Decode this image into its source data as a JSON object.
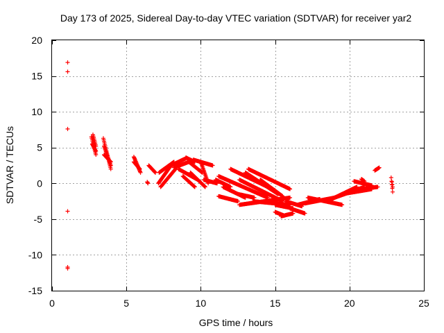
{
  "chart_data": {
    "type": "scatter",
    "title": "Day 173 of 2025, Sidereal Day-to-day VTEC variation (SDTVAR) for receiver yar2",
    "xlabel": "GPS time / hours",
    "ylabel": "SDTVAR / TECUs",
    "xlim": [
      0,
      25
    ],
    "ylim": [
      -15,
      20
    ],
    "xticks": [
      0,
      5,
      10,
      15,
      20,
      25
    ],
    "yticks": [
      -15,
      -10,
      -5,
      0,
      5,
      10,
      15,
      20
    ],
    "grid": true,
    "marker": "+",
    "color": "#ff0000",
    "series": [
      {
        "name": "SDTVAR",
        "description": "plus-marker scatter; traces listed as [start_hour, end_hour, start_value, end_value]",
        "isolated_points": [
          [
            1.05,
            16.9
          ],
          [
            1.05,
            15.6
          ],
          [
            1.05,
            7.6
          ],
          [
            1.05,
            -3.9
          ],
          [
            1.05,
            -11.7
          ],
          [
            1.05,
            -11.9
          ]
        ],
        "traces": [
          [
            2.65,
            2.95,
            6.5,
            4.0
          ],
          [
            2.7,
            2.95,
            5.5,
            4.5
          ],
          [
            2.75,
            2.95,
            6.8,
            5.2
          ],
          [
            3.45,
            3.95,
            6.3,
            2.0
          ],
          [
            3.5,
            3.95,
            5.2,
            2.5
          ],
          [
            3.5,
            3.95,
            4.0,
            3.0
          ],
          [
            5.5,
            5.95,
            3.7,
            1.5
          ],
          [
            5.5,
            5.9,
            3.0,
            2.0
          ],
          [
            6.4,
            6.45,
            0.2,
            0.0
          ],
          [
            6.5,
            6.95,
            2.5,
            1.5
          ],
          [
            7.15,
            8.0,
            0.0,
            2.5
          ],
          [
            7.2,
            8.2,
            1.5,
            3.0
          ],
          [
            7.3,
            8.3,
            -0.5,
            2.0
          ],
          [
            8.0,
            9.0,
            2.5,
            3.5
          ],
          [
            8.2,
            9.2,
            2.2,
            3.0
          ],
          [
            9.0,
            9.6,
            3.6,
            3.0
          ],
          [
            9.2,
            10.1,
            3.0,
            1.5
          ],
          [
            9.5,
            10.8,
            3.3,
            2.5
          ],
          [
            10.0,
            10.5,
            3.0,
            0.0
          ],
          [
            8.5,
            9.8,
            2.0,
            0.5
          ],
          [
            9.3,
            10.3,
            1.5,
            -0.5
          ],
          [
            8.8,
            9.6,
            1.0,
            -0.5
          ],
          [
            10.2,
            11.1,
            0.5,
            0.0
          ],
          [
            11.0,
            12.0,
            0.5,
            -0.5
          ],
          [
            11.2,
            14.5,
            1.0,
            -2.0
          ],
          [
            11.5,
            13.0,
            -0.5,
            -2.0
          ],
          [
            11.2,
            12.5,
            -1.8,
            -2.5
          ],
          [
            12.5,
            13.6,
            -1.5,
            -2.0
          ],
          [
            13.0,
            15.2,
            1.5,
            -1.5
          ],
          [
            12.0,
            15.0,
            2.0,
            -1.0
          ],
          [
            13.2,
            16.0,
            2.0,
            -0.8
          ],
          [
            12.6,
            15.5,
            0.5,
            -2.5
          ],
          [
            12.6,
            16.0,
            -3.0,
            -2.0
          ],
          [
            13.5,
            16.0,
            -2.5,
            -3.0
          ],
          [
            14.0,
            15.5,
            0.5,
            -1.8
          ],
          [
            15.0,
            16.2,
            -3.0,
            -3.5
          ],
          [
            15.0,
            15.6,
            -4.0,
            -4.5
          ],
          [
            15.4,
            16.2,
            -4.6,
            -4.2
          ],
          [
            15.7,
            16.8,
            -2.5,
            -3.2
          ],
          [
            16.0,
            17.0,
            -3.5,
            -4.2
          ],
          [
            16.5,
            18.0,
            -3.0,
            -2.2
          ],
          [
            17.0,
            19.0,
            -2.8,
            -2.0
          ],
          [
            17.2,
            19.5,
            -2.0,
            -3.0
          ],
          [
            18.5,
            20.5,
            -2.5,
            -0.5
          ],
          [
            19.0,
            21.0,
            -2.0,
            -0.5
          ],
          [
            19.5,
            21.5,
            -1.5,
            -0.8
          ],
          [
            20.0,
            21.9,
            -1.0,
            -0.5
          ],
          [
            20.3,
            21.5,
            0.3,
            -0.3
          ],
          [
            20.8,
            21.0,
            0.6,
            0.3
          ],
          [
            21.7,
            22.0,
            1.8,
            2.2
          ],
          [
            22.8,
            22.9,
            0.8,
            -1.2
          ],
          [
            22.85,
            22.9,
            0.2,
            -0.5
          ]
        ]
      }
    ]
  }
}
